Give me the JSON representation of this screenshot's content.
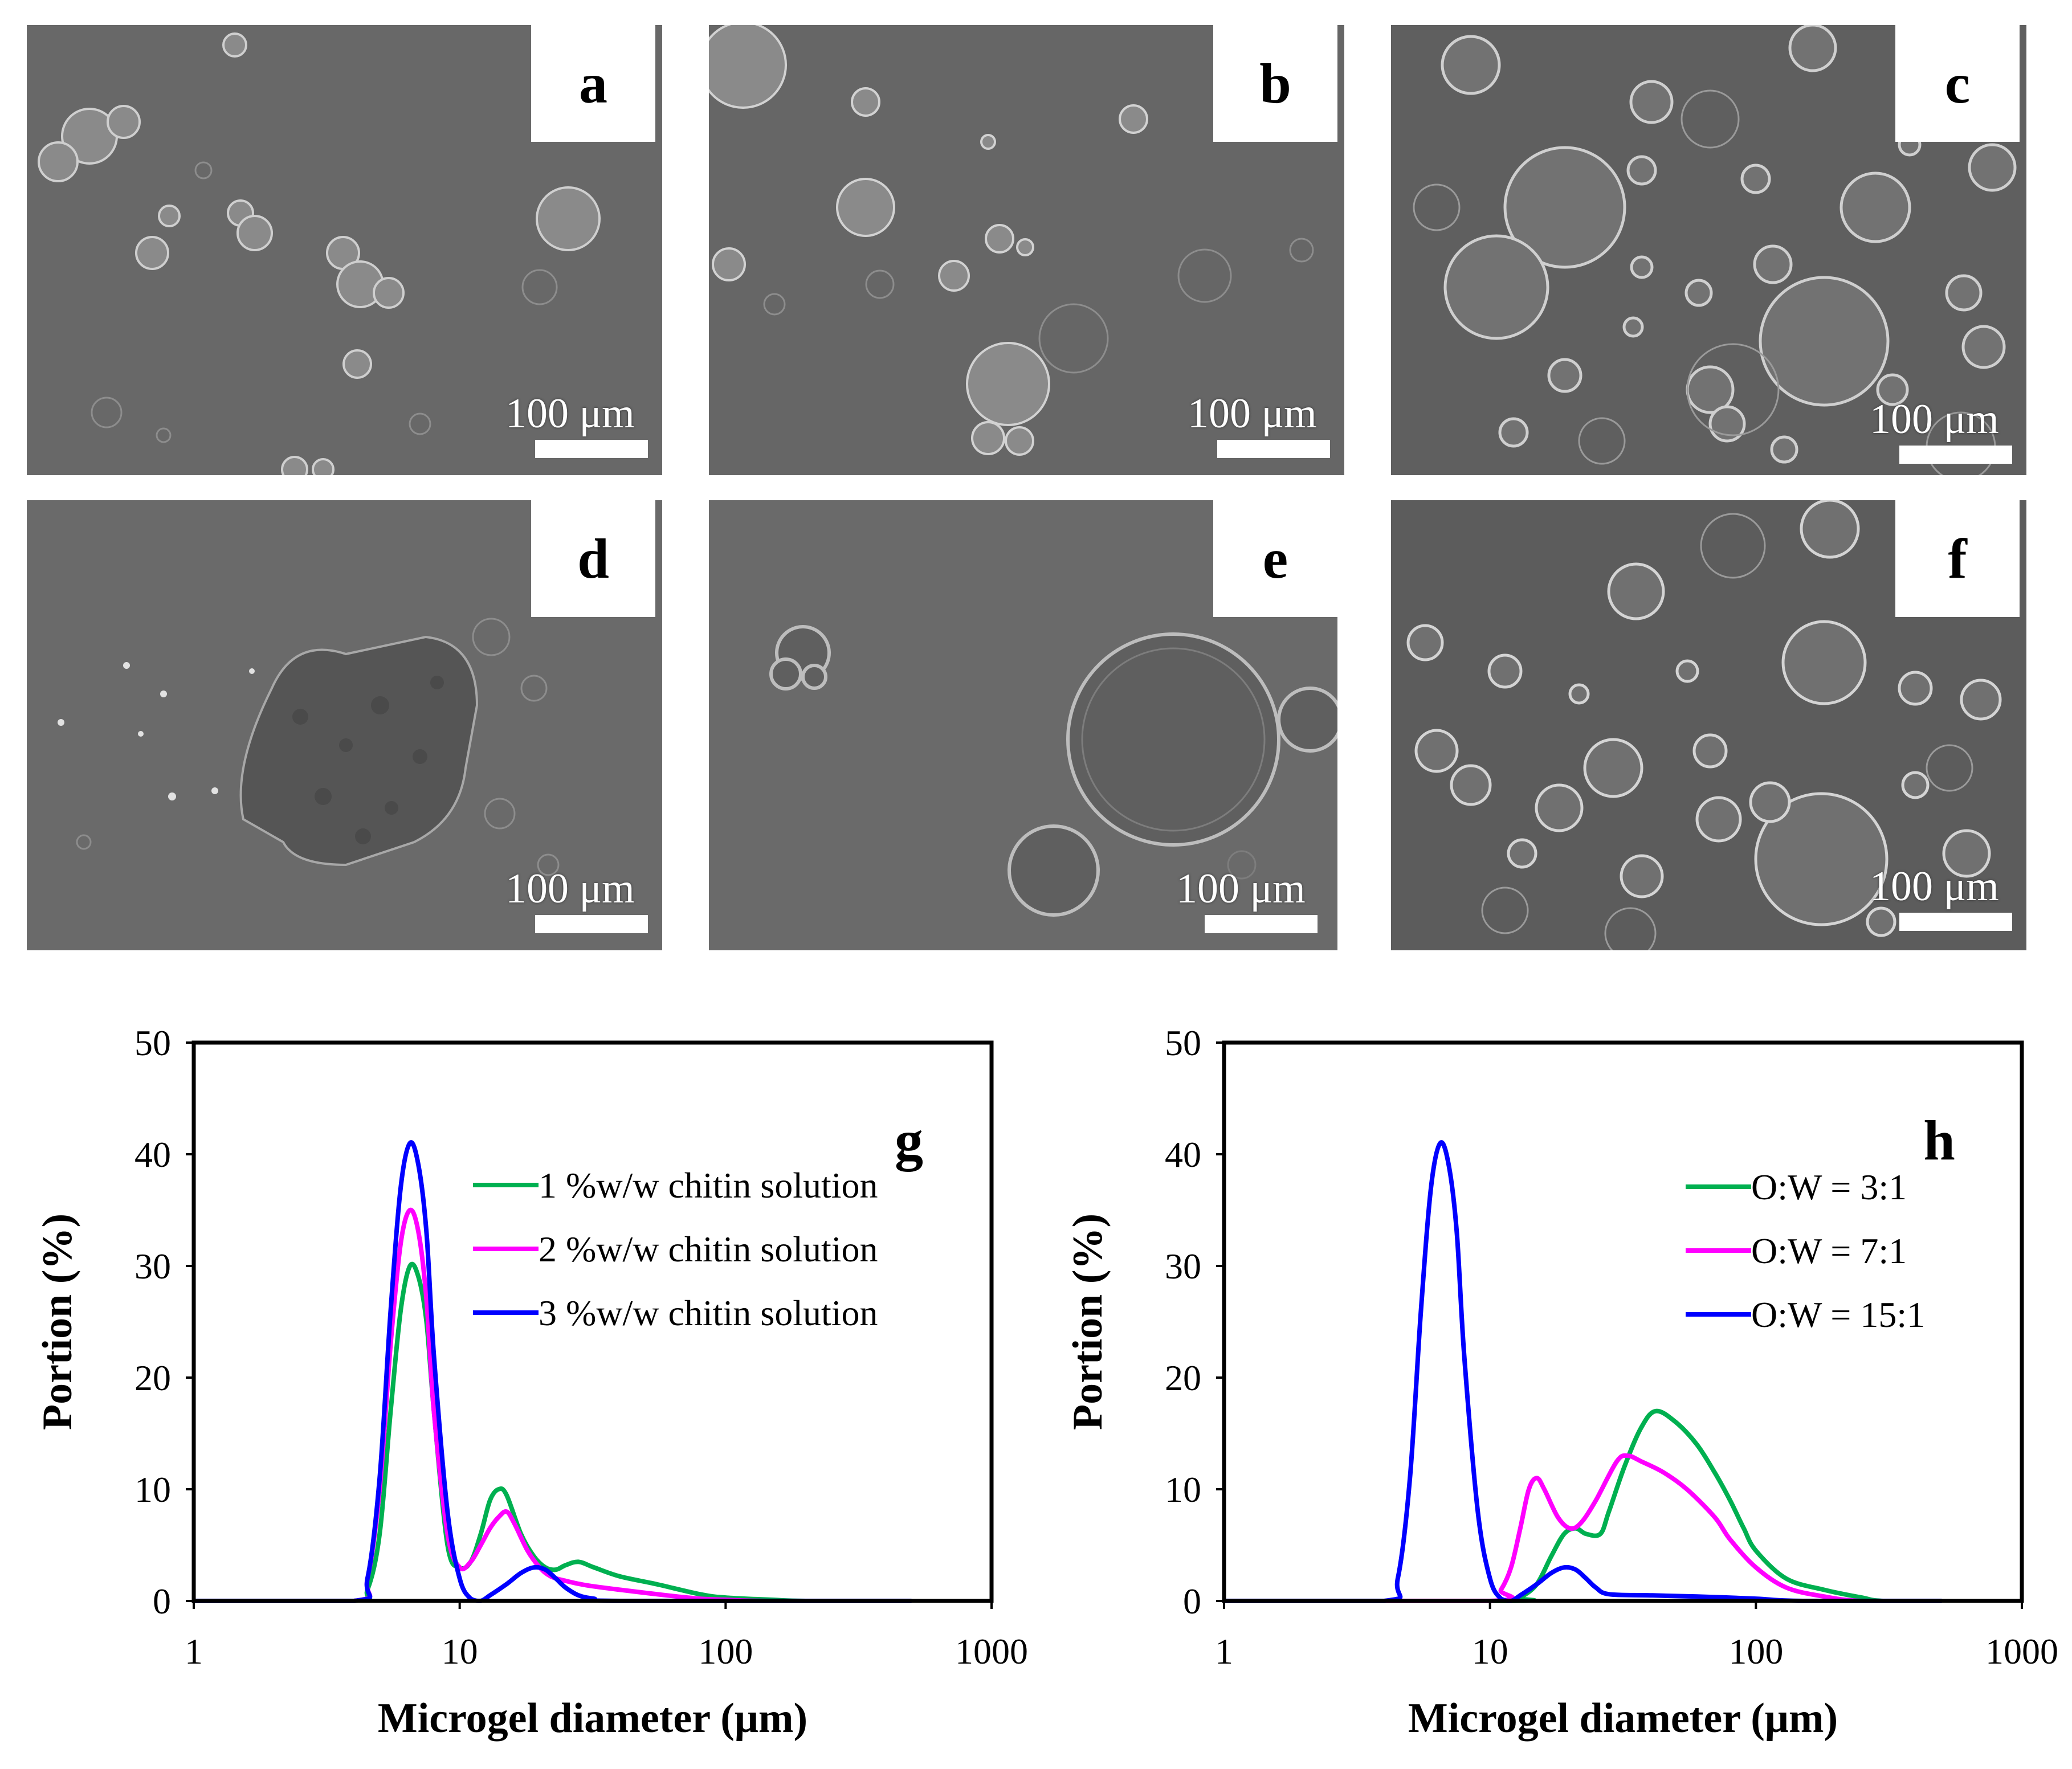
{
  "micrographs": [
    {
      "label": "a",
      "scale_bar": "100 μm"
    },
    {
      "label": "b",
      "scale_bar": "100 μm"
    },
    {
      "label": "c",
      "scale_bar": "100 μm"
    },
    {
      "label": "d",
      "scale_bar": "100 μm"
    },
    {
      "label": "e",
      "scale_bar": "100 μm"
    },
    {
      "label": "f",
      "scale_bar": "100 μm"
    }
  ],
  "chart_data": [
    {
      "type": "line",
      "panel_label": "g",
      "xlabel": "Microgel diameter (μm)",
      "ylabel": "Portion (%)",
      "xscale": "log",
      "xlim": [
        1,
        1000
      ],
      "ylim": [
        0,
        50
      ],
      "xticks": [
        "1",
        "10",
        "100",
        "1000"
      ],
      "yticks": [
        "0",
        "10",
        "20",
        "30",
        "40",
        "50"
      ],
      "legend_position": "upper-right",
      "grid": false,
      "series": [
        {
          "name": "1 %w/w chitin solution",
          "color": "#00b050",
          "points": [
            [
              1,
              0
            ],
            [
              4,
              0
            ],
            [
              4.5,
              1
            ],
            [
              5,
              6
            ],
            [
              5.5,
              17
            ],
            [
              6,
              26
            ],
            [
              6.5,
              30
            ],
            [
              7,
              29
            ],
            [
              7.5,
              25
            ],
            [
              8,
              17
            ],
            [
              9,
              5
            ],
            [
              10,
              3
            ],
            [
              11,
              3.5
            ],
            [
              12,
              6
            ],
            [
              13,
              9
            ],
            [
              14,
              10
            ],
            [
              15,
              9.5
            ],
            [
              17,
              6
            ],
            [
              19,
              4
            ],
            [
              21,
              3
            ],
            [
              23,
              2.8
            ],
            [
              25,
              3.2
            ],
            [
              28,
              3.5
            ],
            [
              32,
              3
            ],
            [
              40,
              2.2
            ],
            [
              55,
              1.5
            ],
            [
              80,
              0.6
            ],
            [
              100,
              0.3
            ],
            [
              150,
              0.1
            ],
            [
              200,
              0
            ],
            [
              500,
              0
            ]
          ]
        },
        {
          "name": "2 %w/w chitin solution",
          "color": "#ff00ff",
          "points": [
            [
              1,
              0
            ],
            [
              4,
              0
            ],
            [
              4.5,
              2
            ],
            [
              5,
              10
            ],
            [
              5.5,
              23
            ],
            [
              6,
              32
            ],
            [
              6.5,
              35
            ],
            [
              7,
              33
            ],
            [
              7.5,
              27
            ],
            [
              8,
              17
            ],
            [
              9,
              6
            ],
            [
              10,
              3
            ],
            [
              11,
              3.5
            ],
            [
              12,
              5
            ],
            [
              13,
              6.5
            ],
            [
              14,
              7.5
            ],
            [
              15,
              8
            ],
            [
              16,
              7
            ],
            [
              18,
              4.5
            ],
            [
              20,
              3
            ],
            [
              22,
              2.2
            ],
            [
              25,
              1.8
            ],
            [
              30,
              1.4
            ],
            [
              40,
              1
            ],
            [
              60,
              0.5
            ],
            [
              80,
              0.2
            ],
            [
              100,
              0.1
            ],
            [
              150,
              0
            ],
            [
              500,
              0
            ]
          ]
        },
        {
          "name": "3 %w/w chitin solution",
          "color": "#0000ff",
          "points": [
            [
              1,
              0
            ],
            [
              4,
              0
            ],
            [
              4.5,
              2
            ],
            [
              5,
              11
            ],
            [
              5.5,
              26
            ],
            [
              6,
              37
            ],
            [
              6.5,
              41
            ],
            [
              7,
              39
            ],
            [
              7.5,
              33
            ],
            [
              8,
              22
            ],
            [
              9,
              8
            ],
            [
              10,
              2
            ],
            [
              11,
              0.2
            ],
            [
              12,
              0
            ],
            [
              13,
              0.5
            ],
            [
              15,
              1.5
            ],
            [
              17,
              2.5
            ],
            [
              19,
              3
            ],
            [
              21,
              2.8
            ],
            [
              23,
              2
            ],
            [
              25,
              1.2
            ],
            [
              28,
              0.5
            ],
            [
              32,
              0.2
            ],
            [
              40,
              0
            ],
            [
              500,
              0
            ]
          ]
        }
      ]
    },
    {
      "type": "line",
      "panel_label": "h",
      "xlabel": "Microgel diameter (μm)",
      "ylabel": "Portion (%)",
      "xscale": "log",
      "xlim": [
        1,
        1000
      ],
      "ylim": [
        0,
        50
      ],
      "xticks": [
        "1",
        "10",
        "100",
        "1000"
      ],
      "yticks": [
        "0",
        "10",
        "20",
        "30",
        "40",
        "50"
      ],
      "legend_position": "upper-right",
      "grid": false,
      "series": [
        {
          "name": "O:W = 3:1",
          "color": "#00b050",
          "points": [
            [
              1,
              0
            ],
            [
              12,
              0
            ],
            [
              13,
              0.3
            ],
            [
              15,
              1.5
            ],
            [
              17,
              4
            ],
            [
              19,
              6
            ],
            [
              21,
              6.5
            ],
            [
              23,
              6
            ],
            [
              26,
              6
            ],
            [
              28,
              8
            ],
            [
              32,
              12
            ],
            [
              37,
              15.5
            ],
            [
              42,
              17
            ],
            [
              50,
              16
            ],
            [
              60,
              14
            ],
            [
              70,
              11.5
            ],
            [
              80,
              9
            ],
            [
              90,
              6.5
            ],
            [
              100,
              4.5
            ],
            [
              130,
              2
            ],
            [
              180,
              1
            ],
            [
              250,
              0.3
            ],
            [
              300,
              0
            ],
            [
              500,
              0
            ]
          ]
        },
        {
          "name": "O:W = 7:1",
          "color": "#ff00ff",
          "points": [
            [
              1,
              0
            ],
            [
              10,
              0
            ],
            [
              11,
              1
            ],
            [
              12,
              3
            ],
            [
              13,
              6.5
            ],
            [
              14,
              10
            ],
            [
              15,
              11
            ],
            [
              16,
              10
            ],
            [
              18,
              7.5
            ],
            [
              20,
              6.5
            ],
            [
              22,
              7
            ],
            [
              25,
              9
            ],
            [
              30,
              12.5
            ],
            [
              33,
              13
            ],
            [
              37,
              12.5
            ],
            [
              45,
              11.5
            ],
            [
              55,
              10
            ],
            [
              70,
              7.5
            ],
            [
              80,
              5.5
            ],
            [
              100,
              3
            ],
            [
              130,
              1.2
            ],
            [
              180,
              0.4
            ],
            [
              250,
              0
            ],
            [
              500,
              0
            ]
          ]
        },
        {
          "name": "O:W = 15:1",
          "color": "#0000ff",
          "points": [
            [
              1,
              0
            ],
            [
              4,
              0
            ],
            [
              4.5,
              2
            ],
            [
              5,
              11
            ],
            [
              5.5,
              26
            ],
            [
              6,
              37
            ],
            [
              6.5,
              41
            ],
            [
              7,
              39
            ],
            [
              7.5,
              33
            ],
            [
              8,
              22
            ],
            [
              9,
              8
            ],
            [
              10,
              2
            ],
            [
              11,
              0.2
            ],
            [
              12,
              0
            ],
            [
              13,
              0.5
            ],
            [
              15,
              1.5
            ],
            [
              17,
              2.5
            ],
            [
              19,
              3
            ],
            [
              21,
              2.8
            ],
            [
              23,
              2
            ],
            [
              25,
              1.2
            ],
            [
              28,
              0.6
            ],
            [
              40,
              0.5
            ],
            [
              60,
              0.4
            ],
            [
              100,
              0.2
            ],
            [
              150,
              0
            ],
            [
              500,
              0
            ]
          ]
        }
      ]
    }
  ]
}
